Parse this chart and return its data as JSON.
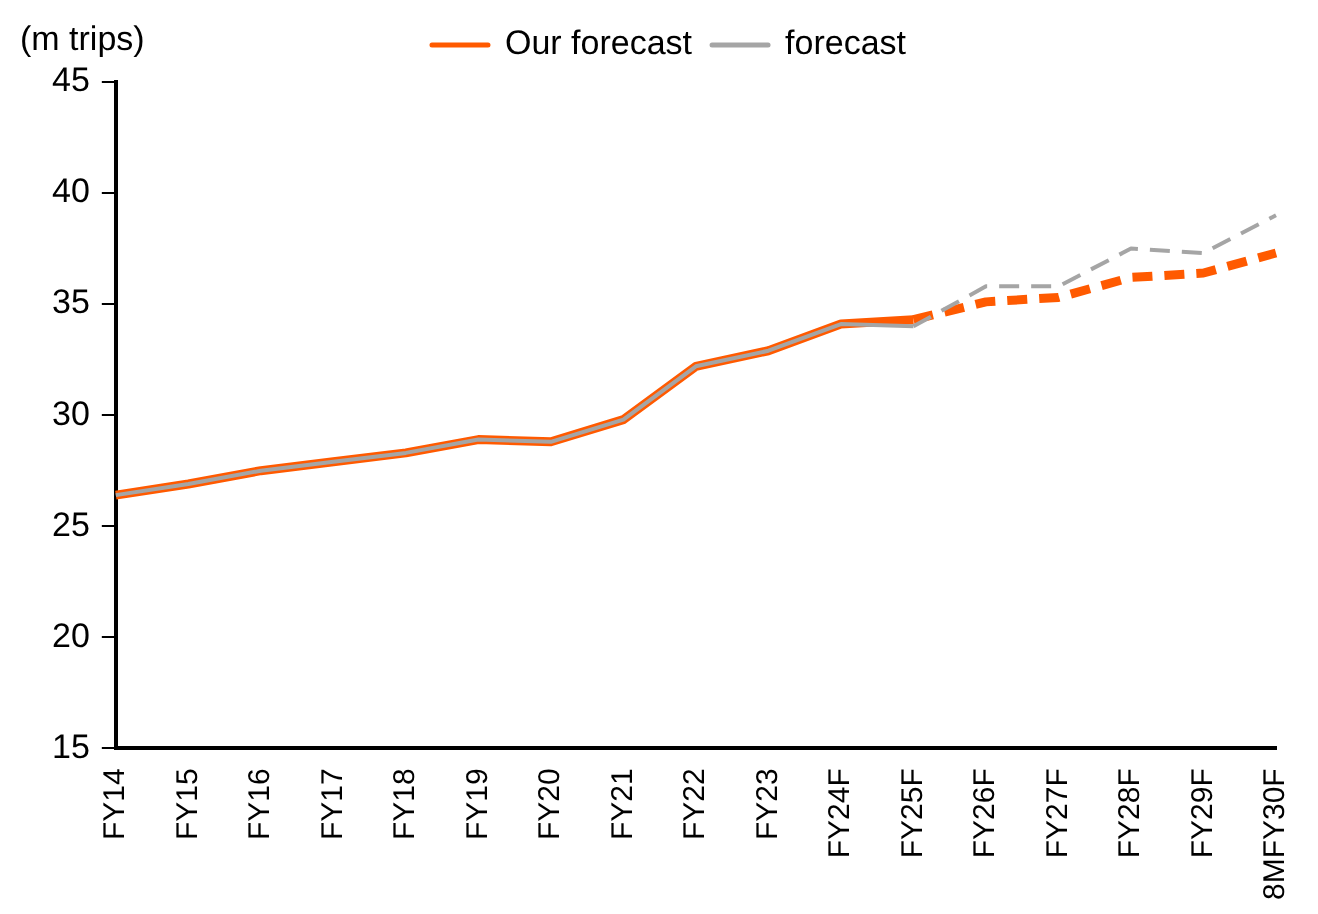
{
  "chart_data": {
    "type": "line",
    "ylabel": "(m trips)",
    "categories": [
      "FY14",
      "FY15",
      "FY16",
      "FY17",
      "FY18",
      "FY19",
      "FY20",
      "FY21",
      "FY22",
      "FY23",
      "FY24F",
      "FY25F",
      "FY26F",
      "FY27F",
      "FY28F",
      "FY29F",
      "8MFY30F"
    ],
    "series": [
      {
        "name": "Our forecast",
        "color": "#ff5a00",
        "line_style": "solid",
        "values": [
          26.4,
          26.9,
          27.5,
          27.9,
          28.3,
          28.9,
          28.8,
          29.8,
          32.2,
          32.9,
          34.1,
          34.3,
          null,
          null,
          null,
          null,
          null
        ]
      },
      {
        "color": "#ff5a00",
        "line_style": "dashed",
        "values": [
          null,
          null,
          null,
          null,
          null,
          null,
          null,
          null,
          null,
          null,
          null,
          34.3,
          35.1,
          35.3,
          36.2,
          36.4,
          37.3
        ]
      },
      {
        "name": "forecast",
        "color": "#a5a5a5",
        "line_style": "solid",
        "values": [
          26.4,
          26.9,
          27.5,
          27.9,
          28.3,
          28.9,
          28.8,
          29.8,
          32.2,
          32.9,
          34.1,
          34.0,
          null,
          null,
          null,
          null,
          null
        ]
      },
      {
        "color": "#a5a5a5",
        "line_style": "dashed",
        "values": [
          null,
          null,
          null,
          null,
          null,
          null,
          null,
          null,
          null,
          null,
          null,
          34.0,
          35.8,
          35.8,
          37.5,
          37.3,
          39.0
        ]
      }
    ],
    "ylim": [
      15,
      45
    ],
    "yticks": [
      15,
      20,
      25,
      30,
      35,
      40,
      45
    ],
    "grid": false,
    "legend": "top",
    "marker": "none"
  }
}
